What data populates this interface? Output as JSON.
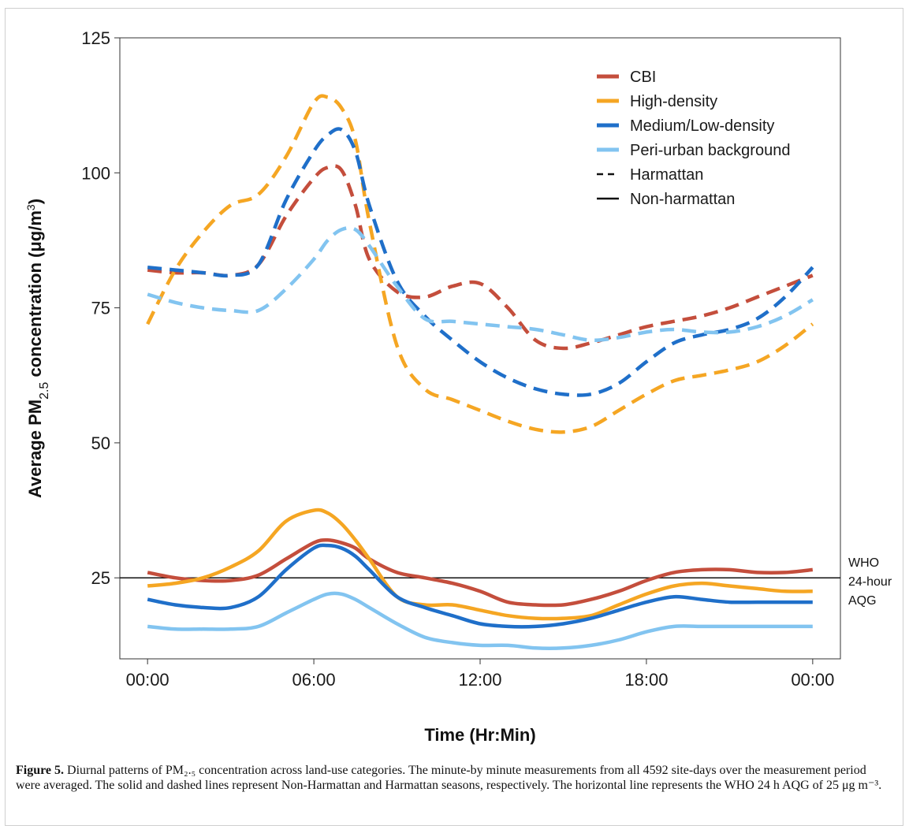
{
  "chart_data": {
    "type": "line",
    "xlabel": "Time (Hr:Min)",
    "ylabel_parts": {
      "prefix": "Average PM",
      "sub": "2.5",
      "middle": " concentration (μg/m",
      "sup": "3",
      "suffix": ")"
    },
    "x_unit": "hours",
    "xlim": [
      -1,
      25
    ],
    "ylim": [
      10,
      125
    ],
    "x_ticks": [
      0,
      6,
      12,
      18,
      24
    ],
    "x_tick_labels": [
      "00:00",
      "06:00",
      "12:00",
      "18:00",
      "00:00"
    ],
    "y_ticks": [
      25,
      50,
      75,
      100,
      125
    ],
    "y_tick_labels": [
      "25",
      "50",
      "75",
      "100",
      "125"
    ],
    "legend_position": "top-right",
    "legend": [
      {
        "label": "CBI",
        "color": "#C44E3C",
        "style": "solid-swatch"
      },
      {
        "label": "High-density",
        "color": "#F5A623",
        "style": "solid-swatch"
      },
      {
        "label": "Medium/Low-density",
        "color": "#1F6FC9",
        "style": "solid-swatch"
      },
      {
        "label": "Peri-urban background",
        "color": "#82C4F0",
        "style": "solid-swatch"
      },
      {
        "label": "Harmattan",
        "color": "#111111",
        "style": "dashed"
      },
      {
        "label": "Non-harmattan",
        "color": "#111111",
        "style": "solid"
      }
    ],
    "reference_line": {
      "y": 25,
      "label_lines": [
        "WHO",
        "24-hour",
        "AQG"
      ]
    },
    "x": [
      0,
      1,
      2,
      3,
      4,
      5,
      6,
      6.5,
      7,
      7.5,
      8,
      9,
      10,
      11,
      12,
      13,
      14,
      15,
      16,
      17,
      18,
      19,
      20,
      21,
      22,
      23,
      24
    ],
    "series": [
      {
        "category": "CBI",
        "season": "Harmattan",
        "color": "#C44E3C",
        "dashed": true,
        "values": [
          82,
          81.5,
          81.5,
          81,
          83,
          92,
          99,
          101,
          100.5,
          94,
          84,
          78,
          77,
          79,
          79.5,
          75,
          69,
          67.5,
          68.5,
          70,
          71.5,
          72.5,
          73.5,
          75,
          77,
          79,
          81
        ]
      },
      {
        "category": "High-density",
        "season": "Harmattan",
        "color": "#F5A623",
        "dashed": true,
        "values": [
          72,
          82,
          89,
          94,
          96,
          103,
          113,
          114,
          112,
          106,
          91,
          68,
          60,
          58,
          56,
          54,
          52.5,
          52,
          53,
          56,
          59,
          61.5,
          62.5,
          63.5,
          65,
          68,
          72
        ]
      },
      {
        "category": "Medium/Low-density",
        "season": "Harmattan",
        "color": "#1F6FC9",
        "dashed": true,
        "values": [
          82.5,
          82,
          81.5,
          81,
          83,
          95,
          104,
          107,
          108,
          104,
          94,
          80,
          73.5,
          69,
          65,
          62,
          60,
          59,
          59,
          61,
          65,
          68.5,
          70,
          71,
          73,
          77,
          82.5
        ]
      },
      {
        "category": "Peri-urban background",
        "season": "Harmattan",
        "color": "#82C4F0",
        "dashed": true,
        "values": [
          77.5,
          76,
          75,
          74.5,
          74.5,
          78.5,
          84,
          87.5,
          89.5,
          89.5,
          86.5,
          79,
          73,
          72.5,
          72,
          71.5,
          71,
          70,
          69,
          69.5,
          70.5,
          71,
          70.5,
          70.5,
          71.5,
          73.5,
          76.5
        ]
      },
      {
        "category": "CBI",
        "season": "Non-harmattan",
        "color": "#C44E3C",
        "dashed": false,
        "values": [
          26,
          25,
          24.5,
          24.5,
          25.5,
          28.5,
          31.5,
          32,
          31.5,
          30.5,
          28.5,
          26,
          25,
          24,
          22.5,
          20.5,
          20,
          20,
          21,
          22.5,
          24.5,
          26,
          26.5,
          26.5,
          26,
          26,
          26.5
        ]
      },
      {
        "category": "High-density",
        "season": "Non-harmattan",
        "color": "#F5A623",
        "dashed": false,
        "values": [
          23.5,
          24,
          25,
          27,
          30,
          35.5,
          37.5,
          37,
          35,
          32,
          28.5,
          21.5,
          20,
          20,
          19,
          18,
          17.5,
          17.5,
          18,
          20,
          22,
          23.5,
          24,
          23.5,
          23,
          22.5,
          22.5
        ]
      },
      {
        "category": "Medium/Low-density",
        "season": "Non-harmattan",
        "color": "#1F6FC9",
        "dashed": false,
        "values": [
          21,
          20,
          19.5,
          19.5,
          21.5,
          26.5,
          30.5,
          31,
          30.5,
          29,
          26.5,
          21.5,
          19.5,
          18,
          16.5,
          16,
          16,
          16.5,
          17.5,
          19,
          20.5,
          21.5,
          21,
          20.5,
          20.5,
          20.5,
          20.5
        ]
      },
      {
        "category": "Peri-urban background",
        "season": "Non-harmattan",
        "color": "#82C4F0",
        "dashed": false,
        "values": [
          16,
          15.5,
          15.5,
          15.5,
          16,
          18.5,
          21,
          22,
          22,
          21,
          19.5,
          16.5,
          14,
          13,
          12.5,
          12.5,
          12,
          12,
          12.5,
          13.5,
          15,
          16,
          16,
          16,
          16,
          16,
          16
        ]
      }
    ]
  },
  "caption": {
    "label": "Figure 5.",
    "text": " Diurnal patterns of PM₂.₅ concentration across land-use categories. The minute-by minute measurements from all 4592 site-days over the measurement period were averaged. The solid and dashed lines represent Non-Harmattan and Harmattan seasons, respectively. The horizontal line represents the WHO 24 h AQG of 25 μg m⁻³."
  }
}
